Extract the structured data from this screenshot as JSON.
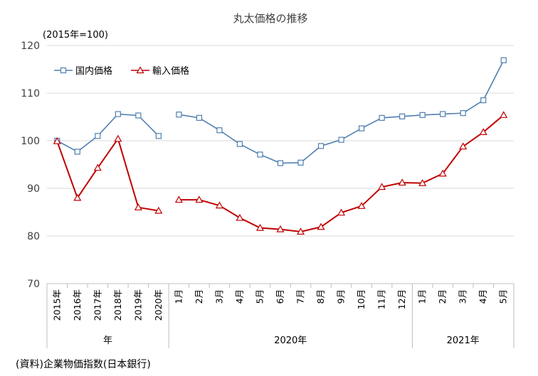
{
  "chart_data": {
    "type": "line",
    "title": "丸太価格の推移",
    "unit_label": "(2015年=100)",
    "source": "(資料)企業物価指数(日本銀行)",
    "ylim": [
      70,
      120
    ],
    "yticks": [
      70,
      80,
      90,
      100,
      110,
      120
    ],
    "grid": true,
    "legend_position": "top-left",
    "categories": [
      "2015年",
      "2016年",
      "2017年",
      "2018年",
      "2019年",
      "2020年",
      "1月",
      "2月",
      "3月",
      "4月",
      "5月",
      "6月",
      "7月",
      "8月",
      "9月",
      "10月",
      "11月",
      "12月",
      "1月",
      "2月",
      "3月",
      "4月",
      "5月"
    ],
    "category_groups": [
      {
        "label": "年",
        "start": 0,
        "end": 5
      },
      {
        "label": "2020年",
        "start": 6,
        "end": 17
      },
      {
        "label": "2021年",
        "start": 18,
        "end": 22
      }
    ],
    "series": [
      {
        "name": "国内価格",
        "color": "#4f7fb0",
        "marker": "square",
        "values": [
          100.0,
          97.7,
          101.0,
          105.6,
          105.3,
          101.0,
          105.5,
          104.8,
          102.2,
          99.3,
          97.1,
          95.3,
          95.4,
          98.9,
          100.2,
          102.6,
          104.8,
          105.1,
          105.4,
          105.6,
          105.8,
          108.5,
          116.9
        ]
      },
      {
        "name": "輸入価格",
        "color": "#c00000",
        "marker": "triangle",
        "values": [
          99.9,
          88.0,
          94.3,
          100.4,
          86.0,
          85.3,
          87.6,
          87.6,
          86.4,
          83.8,
          81.7,
          81.4,
          80.9,
          81.9,
          84.9,
          86.3,
          90.3,
          91.2,
          91.1,
          93.1,
          98.8,
          101.8,
          105.4
        ]
      }
    ]
  }
}
